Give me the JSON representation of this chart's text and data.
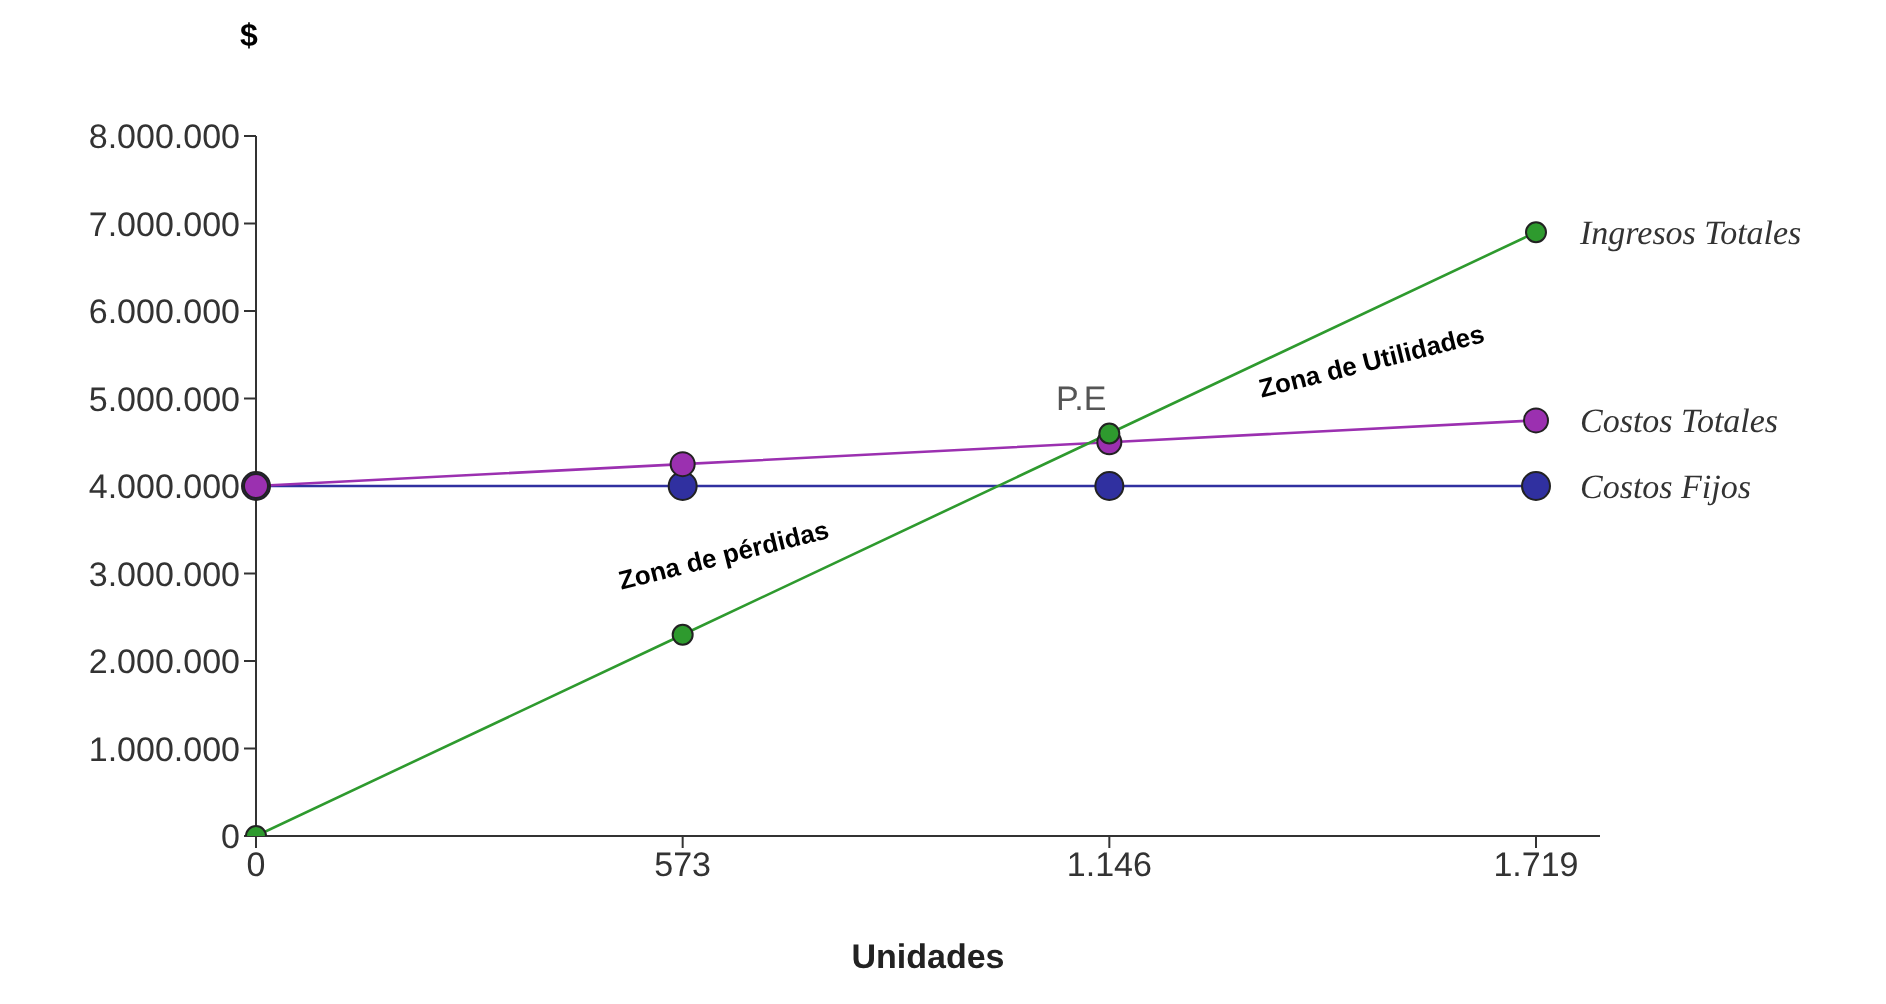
{
  "chart_data": {
    "type": "line",
    "ylabel": "$",
    "xlabel": "Unidades",
    "categories": [
      "0",
      "573",
      "1.146",
      "1.719"
    ],
    "series": [
      {
        "name": "Ingresos Totales",
        "color": "#2e9a2e",
        "values": [
          0,
          2300000,
          4600000,
          6900000
        ]
      },
      {
        "name": "Costos Totales",
        "color": "#9b30b0",
        "values": [
          4000000,
          4250000,
          4500000,
          4750000
        ]
      },
      {
        "name": "Costos Fijos",
        "color": "#3030a0",
        "values": [
          4000000,
          4000000,
          4000000,
          4000000
        ]
      }
    ],
    "ylim": [
      0,
      8000000
    ],
    "yticks": [
      {
        "value": 0,
        "label": "0"
      },
      {
        "value": 1000000,
        "label": "1.000.000"
      },
      {
        "value": 2000000,
        "label": "2.000.000"
      },
      {
        "value": 3000000,
        "label": "3.000.000"
      },
      {
        "value": 4000000,
        "label": "4.000.000"
      },
      {
        "value": 5000000,
        "label": "5.000.000"
      },
      {
        "value": 6000000,
        "label": "6.000.000"
      },
      {
        "value": 7000000,
        "label": "7.000.000"
      },
      {
        "value": 8000000,
        "label": "8.000.000"
      }
    ],
    "annotations": [
      "P.E",
      "Zona de pérdidas",
      "Zona de Utilidades"
    ],
    "grid": false,
    "legend": false,
    "marker": "circle",
    "line_style": "solid"
  }
}
